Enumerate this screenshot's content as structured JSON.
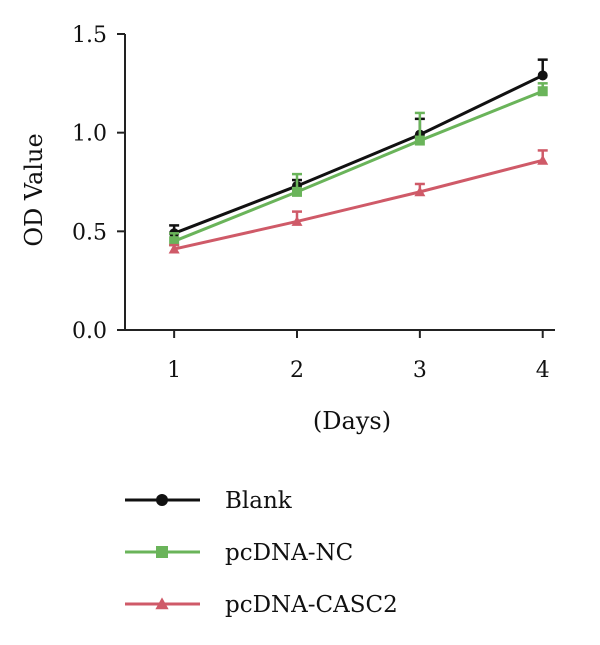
{
  "chart_data": {
    "type": "line",
    "title": "",
    "xlabel": "(Days)",
    "ylabel": "OD Value",
    "x": [
      1,
      2,
      3,
      4
    ],
    "xlim": [
      0.6,
      4.1
    ],
    "ylim": [
      0.0,
      1.5
    ],
    "yticks": [
      "0.0",
      "0.5",
      "1.0",
      "1.5"
    ],
    "xticks": [
      "1",
      "2",
      "3",
      "4"
    ],
    "grid": false,
    "legend_position": "bottom",
    "series": [
      {
        "name": "Blank",
        "values": [
          0.49,
          0.73,
          0.99,
          1.29
        ],
        "errors": [
          0.04,
          0.03,
          0.08,
          0.08
        ],
        "color": "#111111",
        "marker": "circle"
      },
      {
        "name": "pcDNA-NC",
        "values": [
          0.45,
          0.7,
          0.96,
          1.21
        ],
        "errors": [
          0.04,
          0.09,
          0.14,
          0.04
        ],
        "color": "#6ab45a",
        "marker": "square"
      },
      {
        "name": "pcDNA-CASC2",
        "values": [
          0.41,
          0.55,
          0.7,
          0.86
        ],
        "errors": [
          0.02,
          0.05,
          0.04,
          0.05
        ],
        "color": "#cf5a68",
        "marker": "triangle"
      }
    ]
  }
}
